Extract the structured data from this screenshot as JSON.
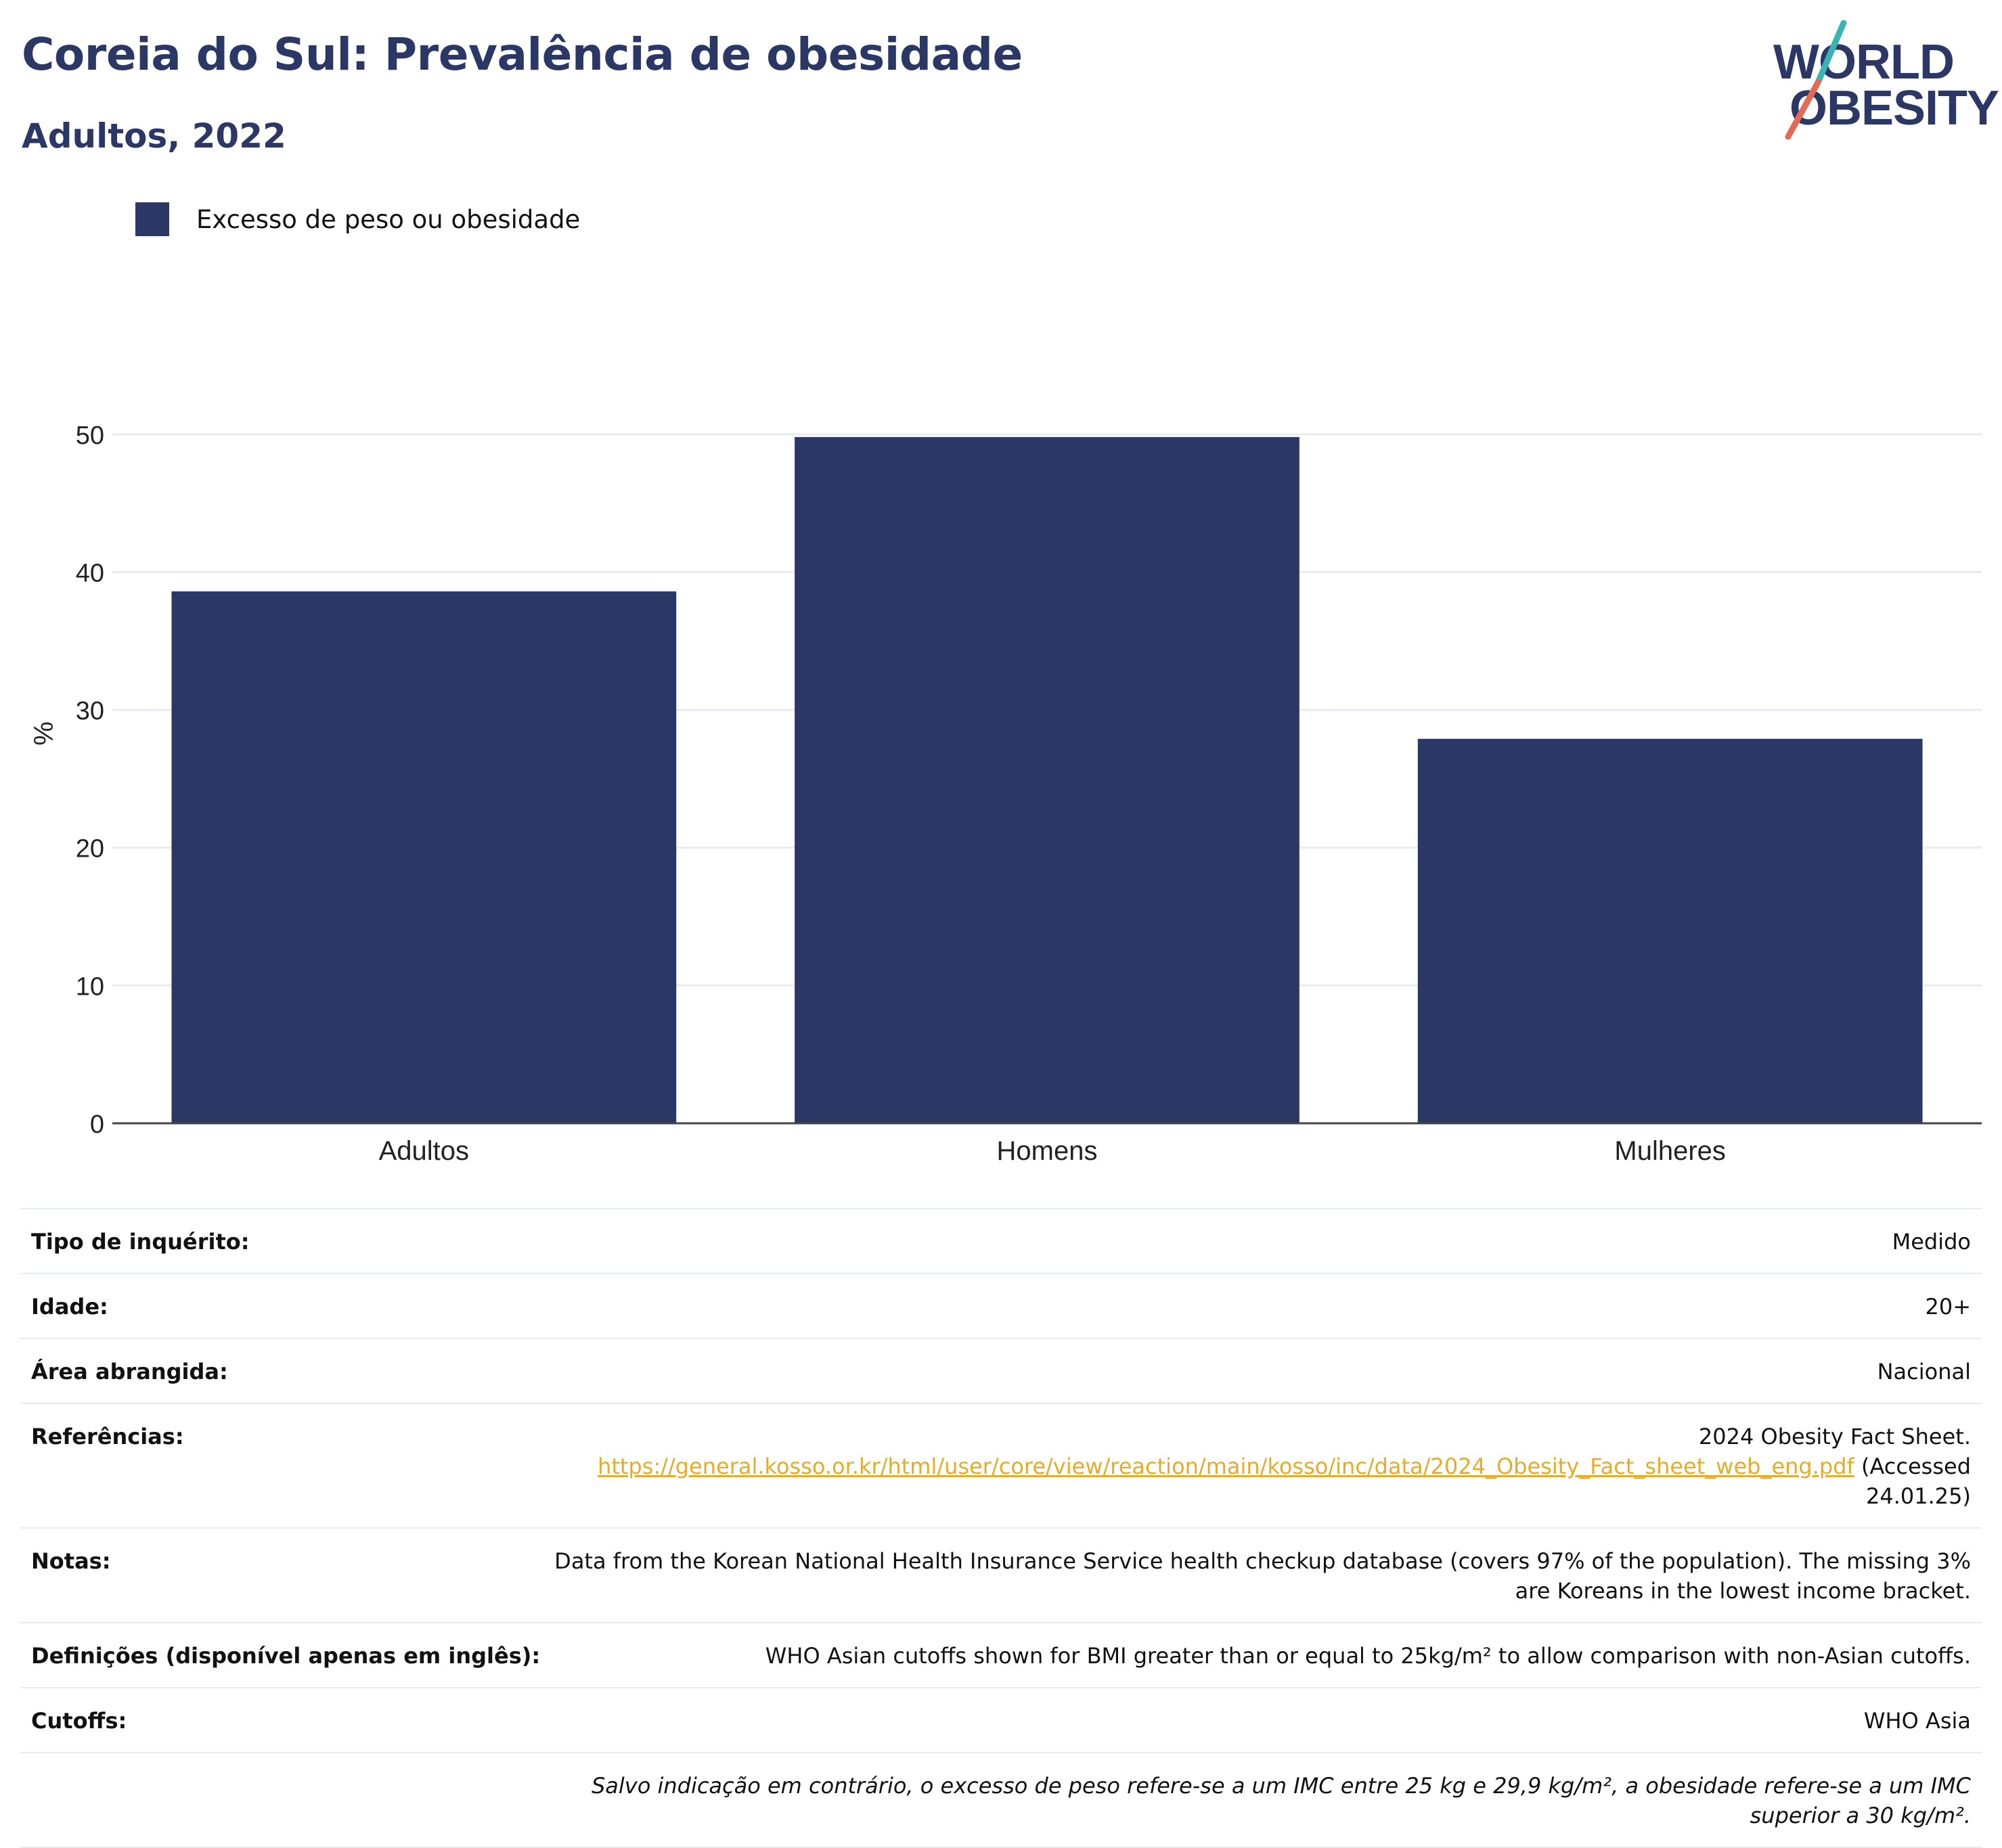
{
  "header": {
    "title": "Coreia do Sul: Prevalência de obesidade",
    "subtitle": "Adultos, 2022",
    "logo_line1": "WORLD",
    "logo_line2": "OBESITY"
  },
  "legend": {
    "label": "Excesso de peso ou obesidade",
    "color": "#2b3764"
  },
  "chart_data": {
    "type": "bar",
    "categories": [
      "Adultos",
      "Homens",
      "Mulheres"
    ],
    "series": [
      {
        "name": "Excesso de peso ou obesidade",
        "values": [
          38.6,
          49.8,
          27.9
        ],
        "color": "#2b3764"
      }
    ],
    "ylabel": "%",
    "ylim": [
      0,
      55
    ],
    "yticks": [
      0,
      10,
      20,
      30,
      40,
      50
    ],
    "grid": true,
    "legend_position": "top-left"
  },
  "info": {
    "survey_type": {
      "label": "Tipo de inquérito:",
      "value": "Medido"
    },
    "age": {
      "label": "Idade:",
      "value": "20+"
    },
    "area": {
      "label": "Área abrangida:",
      "value": "Nacional"
    },
    "references": {
      "label": "Referências:",
      "text_before": "2024 Obesity Fact Sheet.",
      "link": "https://general.kosso.or.kr/html/user/core/view/reaction/main/kosso/inc/data/2024_Obesity_Fact_sheet_web_eng.pdf",
      "text_after": "(Accessed 24.01.25)"
    },
    "notes": {
      "label": "Notas:",
      "value": "Data from the Korean National Health Insurance Service health checkup database (covers 97% of the population). The missing 3% are Koreans in the lowest income bracket."
    },
    "definitions": {
      "label": "Definições (disponível apenas em inglês):",
      "value": "WHO Asian cutoffs shown for BMI greater than or equal to 25kg/m² to allow comparison with non-Asian cutoffs."
    },
    "cutoffs": {
      "label": "Cutoffs:",
      "value": "WHO Asia"
    },
    "footnote": "Salvo indicação em contrário, o excesso de peso refere-se a um IMC entre 25 kg e 29,9 kg/m², a obesidade refere-se a um IMC superior a 30 kg/m²."
  }
}
